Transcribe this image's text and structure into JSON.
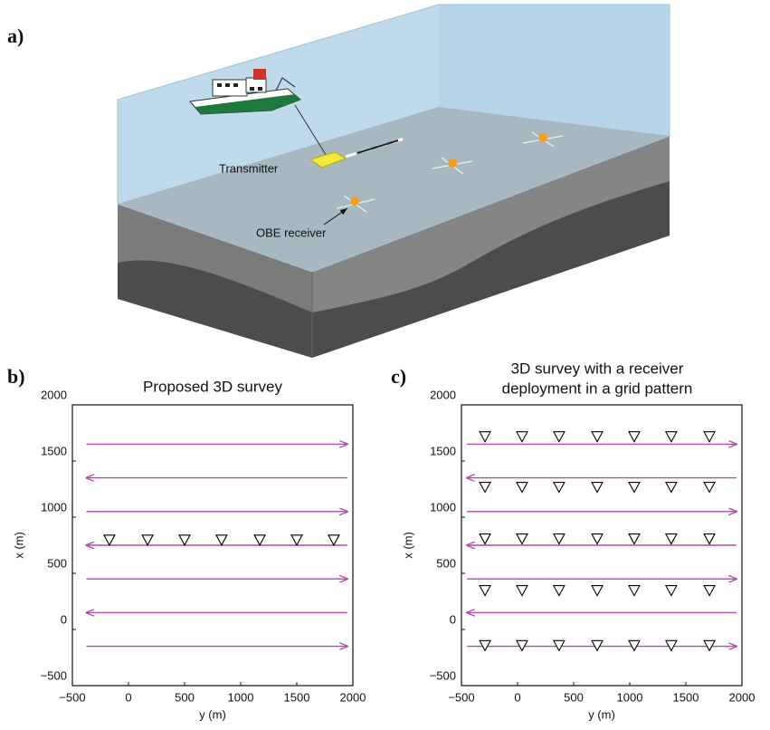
{
  "illustration": {
    "panel_label": "a)",
    "annotations": [
      "Transmitter",
      "OBE receiver"
    ]
  },
  "chart_data": [
    {
      "type": "scatter",
      "panel_label": "b)",
      "title": [
        "Proposed 3D survey"
      ],
      "xlabel": "y (m)",
      "ylabel": "x (m)",
      "xlim": [
        -500,
        2000
      ],
      "ylim": [
        -500,
        2000
      ],
      "xticks": [
        {
          "value": -500,
          "label": "−500"
        },
        0,
        500,
        1000,
        1500,
        2000
      ],
      "yticks": [
        {
          "value": -500,
          "label": "−500"
        },
        0,
        500,
        1000,
        1500,
        2000
      ],
      "grid": false,
      "lines": {
        "color": "#b04aa8",
        "y": [
          1650,
          1350,
          1050,
          750,
          450,
          150,
          -150
        ],
        "x_start": [
          -375,
          1950,
          -375,
          1950,
          -375,
          1950,
          -375
        ],
        "x_end": [
          1950,
          -375,
          1950,
          -375,
          1950,
          -375,
          1950
        ]
      },
      "points": {
        "color": "#000000",
        "x": [
          -170,
          170,
          500,
          830,
          1170,
          1500,
          1830
        ],
        "y": [
          800,
          800,
          800,
          800,
          800,
          800,
          800
        ]
      }
    },
    {
      "type": "scatter",
      "panel_label": "c)",
      "title": [
        "3D survey with a receiver",
        "deployment in a grid pattern"
      ],
      "xlabel": "y (m)",
      "ylabel": "x (m)",
      "xlim": [
        -500,
        2000
      ],
      "ylim": [
        -500,
        2000
      ],
      "xticks": [
        {
          "value": -500,
          "label": "−500"
        },
        0,
        500,
        1000,
        1500,
        2000
      ],
      "yticks": [
        {
          "value": -500,
          "label": "−500"
        },
        0,
        500,
        1000,
        1500,
        2000
      ],
      "grid": false,
      "lines": {
        "color": "#b04aa8",
        "y": [
          1650,
          1350,
          1050,
          750,
          450,
          150,
          -150
        ],
        "x_start": [
          -450,
          1950,
          -450,
          1950,
          -450,
          1950,
          -450
        ],
        "x_end": [
          1950,
          -450,
          1950,
          -450,
          1950,
          -450,
          1950
        ]
      },
      "points": {
        "color": "#000000",
        "x": [
          -290,
          40,
          370,
          710,
          1040,
          1370,
          1710,
          -290,
          40,
          370,
          710,
          1040,
          1370,
          1710,
          -290,
          40,
          370,
          710,
          1040,
          1370,
          1710,
          -290,
          40,
          370,
          710,
          1040,
          1370,
          1710,
          -290,
          40,
          370,
          710,
          1040,
          1370,
          1710
        ],
        "y": [
          1720,
          1720,
          1720,
          1720,
          1720,
          1720,
          1720,
          1270,
          1270,
          1270,
          1270,
          1270,
          1270,
          1270,
          810,
          810,
          810,
          810,
          810,
          810,
          810,
          350,
          350,
          350,
          350,
          350,
          350,
          350,
          -140,
          -140,
          -140,
          -140,
          -140,
          -140,
          -140
        ]
      }
    }
  ]
}
